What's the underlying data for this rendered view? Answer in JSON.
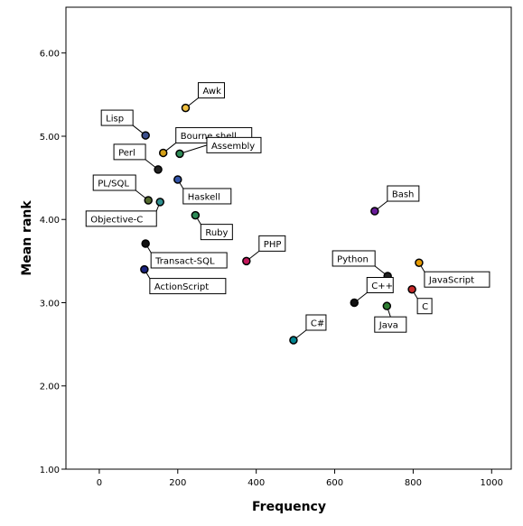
{
  "chart_data": {
    "type": "scatter",
    "title": "",
    "xlabel": "Frequency",
    "ylabel": "Mean rank",
    "xlim": [
      -85,
      1050
    ],
    "ylim": [
      1.0,
      6.55
    ],
    "xticks": [
      0,
      200,
      400,
      600,
      800,
      1000
    ],
    "xtick_labels": [
      "0",
      "200",
      "400",
      "600",
      "800",
      "1000"
    ],
    "yticks": [
      1,
      2,
      3,
      4,
      5,
      6
    ],
    "ytick_labels": [
      "1.00",
      "2.00",
      "3.00",
      "4.00",
      "5.00",
      "6.00"
    ],
    "grid": false,
    "legend": "none",
    "points": [
      {
        "label": "Awk",
        "x": 220,
        "y": 5.34,
        "color": "#f0c040",
        "anchor": "right-up"
      },
      {
        "label": "Lisp",
        "x": 118,
        "y": 5.01,
        "color": "#3b4f8c",
        "anchor": "left-up"
      },
      {
        "label": "Bourne shell",
        "x": 163,
        "y": 4.8,
        "color": "#d4a017",
        "anchor": "right-up"
      },
      {
        "label": "Assembly",
        "x": 205,
        "y": 4.79,
        "color": "#2e8b57",
        "anchor": "right"
      },
      {
        "label": "Perl",
        "x": 150,
        "y": 4.6,
        "color": "#222222",
        "anchor": "left-up"
      },
      {
        "label": "Haskell",
        "x": 200,
        "y": 4.48,
        "color": "#3355aa",
        "anchor": "below-right"
      },
      {
        "label": "PL/SQL",
        "x": 125,
        "y": 4.23,
        "color": "#556b2f",
        "anchor": "left-up"
      },
      {
        "label": "Objective-C",
        "x": 155,
        "y": 4.21,
        "color": "#2f8f8f",
        "anchor": "below-left"
      },
      {
        "label": "Ruby",
        "x": 245,
        "y": 4.05,
        "color": "#2e8b57",
        "anchor": "below-right"
      },
      {
        "label": "Bash",
        "x": 702,
        "y": 4.1,
        "color": "#6a1b9a",
        "anchor": "right-up"
      },
      {
        "label": "Transact-SQL",
        "x": 118,
        "y": 3.71,
        "color": "#111111",
        "anchor": "below-right"
      },
      {
        "label": "PHP",
        "x": 375,
        "y": 3.5,
        "color": "#c2185b",
        "anchor": "right-up"
      },
      {
        "label": "ActionScript",
        "x": 115,
        "y": 3.4,
        "color": "#1a237e",
        "anchor": "below-right"
      },
      {
        "label": "Python",
        "x": 735,
        "y": 3.32,
        "color": "#222222",
        "anchor": "left-up"
      },
      {
        "label": "JavaScript",
        "x": 815,
        "y": 3.48,
        "color": "#e69a00",
        "anchor": "below-right"
      },
      {
        "label": "C",
        "x": 797,
        "y": 3.16,
        "color": "#c62828",
        "anchor": "below-right"
      },
      {
        "label": "C++",
        "x": 650,
        "y": 3.0,
        "color": "#111111",
        "anchor": "right-up"
      },
      {
        "label": "Java",
        "x": 733,
        "y": 2.96,
        "color": "#2e7d32",
        "anchor": "below"
      },
      {
        "label": "C#",
        "x": 495,
        "y": 2.55,
        "color": "#00838f",
        "anchor": "right-up"
      }
    ]
  }
}
